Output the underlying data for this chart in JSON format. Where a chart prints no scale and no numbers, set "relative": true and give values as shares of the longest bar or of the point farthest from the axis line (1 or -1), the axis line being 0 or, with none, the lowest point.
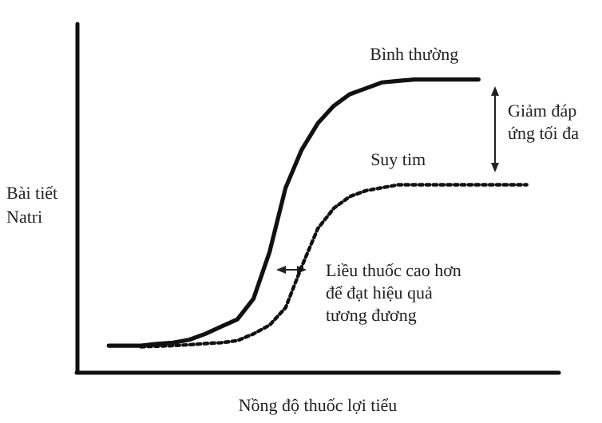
{
  "chart_data": {
    "type": "line",
    "relative": true,
    "xlabel": "Nồng độ thuốc lợi tiểu",
    "ylabel": "Bài tiết\nNatri",
    "categories": [
      null,
      null,
      null,
      null,
      null,
      null,
      null,
      null,
      null,
      null,
      null,
      null,
      null,
      null,
      null,
      null,
      null,
      null,
      null,
      null,
      null,
      null,
      null,
      null,
      null,
      null,
      null,
      null,
      null,
      null,
      null
    ],
    "series": [
      {
        "name": "Bình thường",
        "color": "#111111",
        "line_style": "solid",
        "values": [
          null,
          null,
          0.09,
          0.09,
          0.09,
          0.096,
          0.1,
          0.11,
          0.13,
          0.155,
          0.18,
          0.25,
          0.41,
          0.63,
          0.76,
          0.85,
          0.91,
          0.95,
          0.97,
          0.99,
          0.995,
          1,
          1,
          1,
          1,
          1,
          null,
          null,
          null,
          null,
          null
        ]
      },
      {
        "name": "Suy tim",
        "color": "#111111",
        "line_style": "dotted",
        "values": [
          null,
          null,
          null,
          null,
          0.086,
          0.088,
          0.09,
          0.093,
          0.097,
          0.1,
          0.107,
          0.13,
          0.16,
          0.22,
          0.36,
          0.49,
          0.56,
          0.6,
          0.62,
          0.63,
          0.64,
          0.64,
          0.64,
          0.64,
          0.64,
          0.64,
          0.64,
          0.64,
          0.64,
          null,
          null
        ]
      }
    ],
    "annotations": [
      "Giảm đáp\nứng tối đa",
      "Liều thuốc cao hơn\nđể đạt hiệu quả\ntương đương"
    ],
    "marker": "none",
    "grid": false,
    "legend": false
  }
}
